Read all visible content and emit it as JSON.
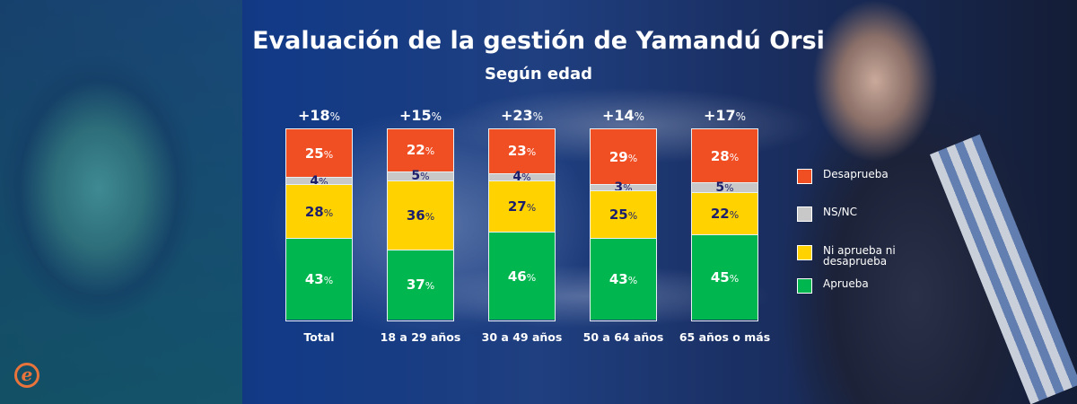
{
  "title": "Evaluación de la gestión de Yamandú Orsi",
  "subtitle": "Según edad",
  "logo_glyph": "e",
  "colors": {
    "desaprueba": "#f04e23",
    "nsnc": "#c8c8c8",
    "ni": "#ffd200",
    "aprueba": "#00b74f",
    "dark_label": "#1c1f6b",
    "light_label": "#ffffff"
  },
  "chart_data": {
    "type": "bar",
    "stacked": true,
    "percent": true,
    "title": "Evaluación de la gestión de Yamandú Orsi",
    "subtitle": "Según edad",
    "categories": [
      "Total",
      "18 a 29 años",
      "30 a 49 años",
      "50 a 64 años",
      "65 años o más"
    ],
    "net_labels": [
      "+18",
      "+15",
      "+23",
      "+14",
      "+17"
    ],
    "series": [
      {
        "name": "Aprueba",
        "key": "aprueba",
        "values": [
          43,
          37,
          46,
          43,
          45
        ]
      },
      {
        "name": "Ni aprueba ni desaprueba",
        "key": "ni",
        "values": [
          28,
          36,
          27,
          25,
          22
        ]
      },
      {
        "name": "NS/NC",
        "key": "nsnc",
        "values": [
          4,
          5,
          4,
          3,
          5
        ]
      },
      {
        "name": "Desaprueba",
        "key": "desaprueba",
        "values": [
          25,
          22,
          23,
          29,
          28
        ]
      }
    ],
    "legend": [
      "Desaprueba",
      "NS/NC",
      "Ni aprueba ni desaprueba",
      "Aprueba"
    ],
    "legend_position": "right",
    "ylim": [
      0,
      100
    ],
    "unit": "%"
  }
}
